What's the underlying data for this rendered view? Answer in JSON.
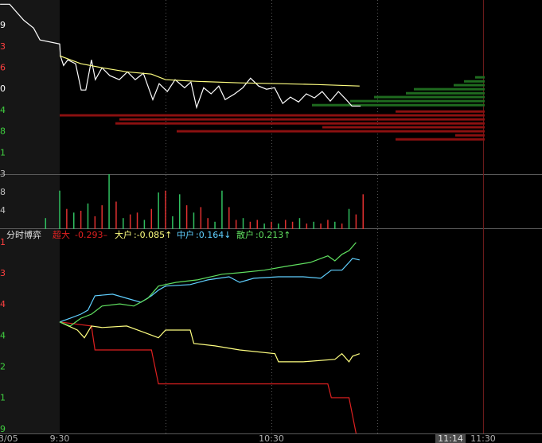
{
  "time_axis": {
    "xlim": [
      -16.92,
      136.7
    ],
    "xticks": [
      {
        "value": 0,
        "label": "9:30"
      },
      {
        "value": 60,
        "label": "10:30"
      },
      {
        "value": 120,
        "label": "11:30"
      }
    ],
    "grid": [
      30,
      60,
      90
    ],
    "date": "3/05",
    "cursor": "11:14"
  },
  "chart_data": [
    {
      "type": "line",
      "ylim": [
        0,
        8.2
      ],
      "yticks": [
        {
          "value": 7,
          "label": "9"
        },
        {
          "value": 6,
          "label": "3"
        },
        {
          "value": 5,
          "label": "6"
        },
        {
          "value": 4,
          "label": "0"
        },
        {
          "value": 3,
          "label": "4"
        },
        {
          "value": 2,
          "label": "8"
        },
        {
          "value": 1,
          "label": "1"
        }
      ],
      "ytick_colors": [
        "#ffffff",
        "#ff4040",
        "#ff4040",
        "#ffffff",
        "#40d040",
        "#40d040",
        "#40d040"
      ],
      "series": [
        {
          "color": "#ffffff",
          "x": [
            -16.9,
            -14.2,
            -10.2,
            -7.4,
            -5.6,
            0,
            0.2,
            1.1,
            2.3,
            4.5,
            6.1,
            7.4,
            9.0,
            10.1,
            12.0,
            14.2,
            16.9,
            19.2,
            21.4,
            23.7,
            26.4,
            28.2,
            30.5,
            32.7,
            35.4,
            37.2,
            38.8,
            40.8,
            42.9,
            45.1,
            46.9,
            49.6,
            51.9,
            54.1,
            56.4,
            58.6,
            60.9,
            63.2,
            65.4,
            67.7,
            69.9,
            72.2,
            74.4,
            76.7,
            79.0,
            81.2,
            82.8,
            85.3
          ],
          "values": [
            8.0,
            8.0,
            7.25,
            6.88,
            6.32,
            6.13,
            5.57,
            5.12,
            5.38,
            5.2,
            3.96,
            3.96,
            5.38,
            4.45,
            5.01,
            4.64,
            4.45,
            4.82,
            4.45,
            4.75,
            3.51,
            4.26,
            3.89,
            4.45,
            4.07,
            4.34,
            3.14,
            4.07,
            3.78,
            4.15,
            3.51,
            3.78,
            4.07,
            4.52,
            4.15,
            4.0,
            4.07,
            3.33,
            3.63,
            3.4,
            3.78,
            3.59,
            3.89,
            3.44,
            3.89,
            3.51,
            3.21,
            3.21
          ]
        },
        {
          "color": "#ffff80",
          "x": [
            0,
            6,
            12,
            19,
            26,
            30,
            39,
            51,
            62,
            73,
            85
          ],
          "values": [
            5.57,
            5.2,
            5.01,
            4.82,
            4.71,
            4.45,
            4.37,
            4.3,
            4.26,
            4.22,
            4.15
          ]
        }
      ],
      "depth": {
        "xlim": [
          0,
          534
        ],
        "prices": [
          4.56,
          4.37,
          4.19,
          4.0,
          3.81,
          3.63,
          3.44,
          3.25,
          2.95,
          2.77,
          2.58,
          2.39,
          2.21,
          2.02,
          1.83,
          1.64
        ],
        "values": [
          12,
          26,
          39,
          89,
          99,
          139,
          169,
          217,
          112,
          534,
          459,
          464,
          204,
          387,
          37,
          112
        ],
        "colors": [
          "#1f6b1f",
          "#1f6b1f",
          "#1f6b1f",
          "#1f6b1f",
          "#1f6b1f",
          "#1f6b1f",
          "#1f6b1f",
          "#1f6b1f",
          "#8b1010",
          "#8b1010",
          "#8b1010",
          "#8b1010",
          "#8b1010",
          "#8b1010",
          "#8b1010",
          "#8b1010"
        ]
      }
    },
    {
      "type": "bar",
      "ylim": [
        0,
        3
      ],
      "yticks": [
        {
          "value": 3,
          "label": "3"
        },
        {
          "value": 2,
          "label": "8"
        },
        {
          "value": 1,
          "label": "4"
        }
      ],
      "ytick_colors": [
        "#c0c0c0",
        "#c0c0c0",
        "#c0c0c0"
      ],
      "x": [
        -4,
        0,
        2,
        4,
        6,
        8,
        10,
        12,
        14,
        16,
        18,
        20,
        22,
        24,
        26,
        28,
        30,
        32,
        34,
        36,
        38,
        40,
        42,
        44,
        46,
        48,
        50,
        52,
        54,
        56,
        58,
        60,
        62,
        64,
        66,
        68,
        70,
        72,
        74,
        76,
        78,
        80,
        82,
        84,
        86
      ],
      "values": [
        0.6,
        2.1,
        1.1,
        0.9,
        1.0,
        1.4,
        0.7,
        1.3,
        3.0,
        1.5,
        0.6,
        0.8,
        0.9,
        0.5,
        1.1,
        2.0,
        2.1,
        0.7,
        1.9,
        1.3,
        0.9,
        1.2,
        0.6,
        0.4,
        2.1,
        1.2,
        0.5,
        0.6,
        0.4,
        0.5,
        0.3,
        0.4,
        0.3,
        0.5,
        0.4,
        0.6,
        0.3,
        0.4,
        0.3,
        0.5,
        0.4,
        0.3,
        1.1,
        0.8,
        1.9
      ],
      "colors": [
        "#30c060",
        "#30c060",
        "#e03030",
        "#30c060",
        "#e03030",
        "#30c060",
        "#e03030",
        "#e03030",
        "#30c060",
        "#e03030",
        "#30c060",
        "#e03030",
        "#e03030",
        "#30c060",
        "#e03030",
        "#30c060",
        "#e03030",
        "#30c060",
        "#30c060",
        "#e03030",
        "#30c060",
        "#e03030",
        "#e03030",
        "#30c060",
        "#30c060",
        "#e03030",
        "#e03030",
        "#30c060",
        "#e03030",
        "#e03030",
        "#30c060",
        "#e03030",
        "#30c060",
        "#e03030",
        "#e03030",
        "#30c060",
        "#e03030",
        "#30c060",
        "#e03030",
        "#e03030",
        "#30c060",
        "#e03030",
        "#30c060",
        "#e03030",
        "#e03030"
      ]
    },
    {
      "type": "line",
      "title": "分时博弈",
      "ylim": [
        -0.13,
        6.38
      ],
      "yticks": [
        {
          "value": 6,
          "label": "1"
        },
        {
          "value": 5,
          "label": "3"
        },
        {
          "value": 4,
          "label": "4"
        },
        {
          "value": 3,
          "label": "4"
        },
        {
          "value": 2,
          "label": "2"
        },
        {
          "value": 1,
          "label": "1"
        },
        {
          "value": 0,
          "label": "9"
        }
      ],
      "ytick_colors": [
        "#ff4040",
        "#ff4040",
        "#ff4040",
        "#40d040",
        "#40d040",
        "#40d040",
        "#40d040"
      ],
      "series": [
        {
          "name": "超大",
          "reading": "-0.293–",
          "color": "#e02020",
          "x": [
            0,
            9,
            10,
            26,
            28,
            76,
            77,
            82,
            84
          ],
          "values": [
            3.45,
            3.32,
            2.55,
            2.55,
            1.46,
            1.46,
            1.02,
            1.02,
            -0.13
          ]
        },
        {
          "name": "大户",
          "reading": ":-0.085↑",
          "color": "#ffff80",
          "x": [
            0,
            5,
            7,
            9,
            12,
            19,
            24,
            28,
            30,
            37,
            38,
            44,
            51,
            61,
            62,
            69,
            78,
            80,
            82,
            83,
            85
          ],
          "values": [
            3.45,
            3.19,
            2.94,
            3.32,
            3.27,
            3.32,
            3.11,
            2.94,
            3.19,
            3.19,
            2.76,
            2.68,
            2.55,
            2.43,
            2.17,
            2.17,
            2.25,
            2.43,
            2.17,
            2.35,
            2.43
          ]
        },
        {
          "name": "中户",
          "reading": ":0.164↓",
          "color": "#60d0ff",
          "x": [
            0,
            3,
            6,
            8,
            10,
            15,
            19,
            23,
            26,
            28,
            30,
            37,
            42,
            48,
            51,
            55,
            62,
            69,
            74,
            77,
            80,
            82,
            83,
            85
          ],
          "values": [
            3.45,
            3.57,
            3.7,
            3.83,
            4.29,
            4.34,
            4.21,
            4.08,
            4.29,
            4.47,
            4.6,
            4.65,
            4.8,
            4.9,
            4.72,
            4.85,
            4.9,
            4.9,
            4.85,
            5.11,
            5.11,
            5.36,
            5.49,
            5.44
          ]
        },
        {
          "name": "散户",
          "reading": ":0.213↑",
          "color": "#60e060",
          "x": [
            0,
            3,
            6,
            9,
            12,
            17,
            21,
            25,
            28,
            33,
            39,
            46,
            51,
            58,
            64,
            71,
            76,
            78,
            80,
            82,
            84
          ],
          "values": [
            3.45,
            3.32,
            3.57,
            3.7,
            3.96,
            4.03,
            3.96,
            4.21,
            4.6,
            4.72,
            4.8,
            4.98,
            5.03,
            5.11,
            5.23,
            5.36,
            5.57,
            5.41,
            5.62,
            5.74,
            6.0
          ]
        }
      ]
    }
  ]
}
